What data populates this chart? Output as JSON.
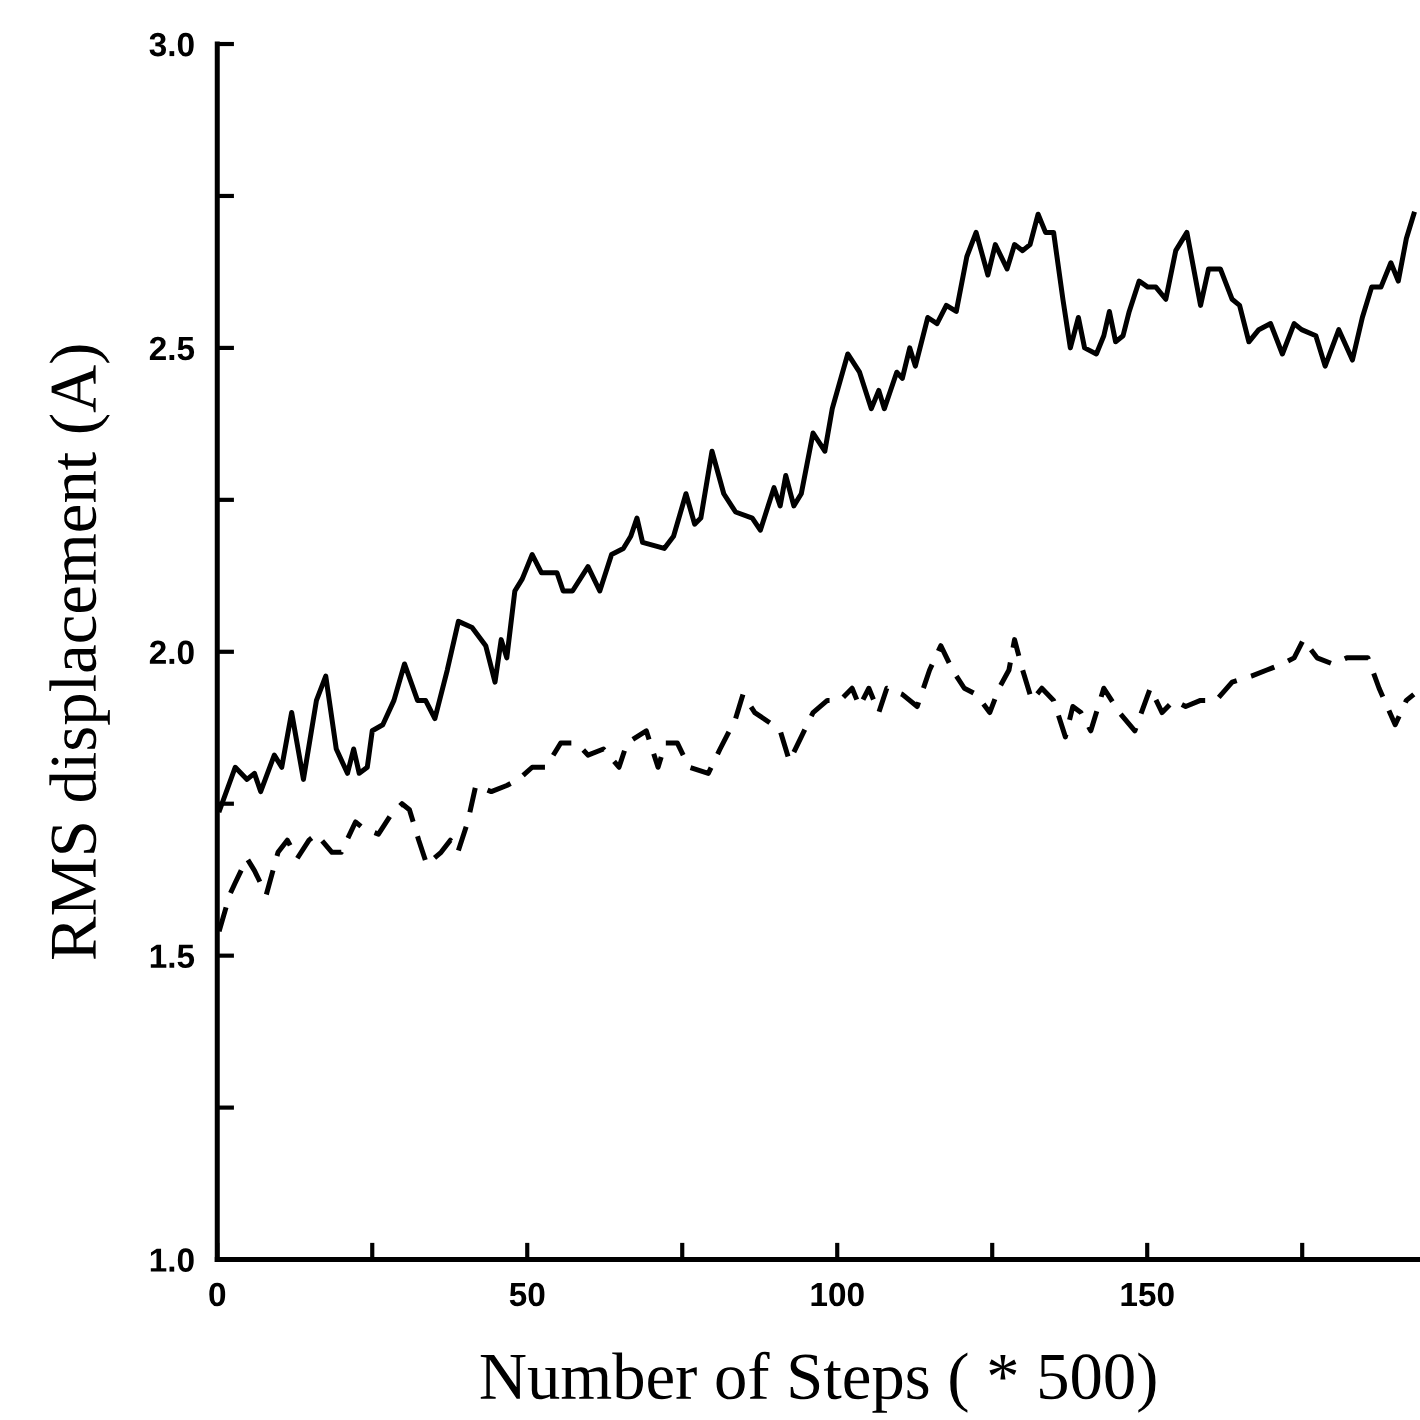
{
  "chart_data": {
    "type": "line",
    "xlabel": "Number of Steps ( * 500)",
    "ylabel": "RMS displacement (A)",
    "xlim": [
      0,
      194
    ],
    "ylim": [
      1.0,
      3.0
    ],
    "xticks": [
      0,
      {
        "value": 25,
        "label": null
      },
      50,
      {
        "value": 75,
        "label": null
      },
      100,
      {
        "value": 125,
        "label": null
      },
      150,
      {
        "value": 175,
        "label": null
      }
    ],
    "yticks": [
      {
        "value": 1.0,
        "label": "1.0"
      },
      {
        "value": 1.25,
        "label": null
      },
      {
        "value": 1.5,
        "label": "1.5"
      },
      {
        "value": 1.75,
        "label": null
      },
      {
        "value": 2.0,
        "label": "2.0"
      },
      {
        "value": 2.25,
        "label": null
      },
      {
        "value": 2.5,
        "label": "2.5"
      },
      {
        "value": 2.75,
        "label": null
      },
      {
        "value": 3.0,
        "label": "3.0"
      }
    ],
    "grid": false,
    "marker": "none",
    "series": [
      {
        "color": "#000000",
        "line_style": "solid",
        "x": [
          0.4,
          2.9,
          4.8,
          6.0,
          7.0,
          9.2,
          10.4,
          12.0,
          13.9,
          16.0,
          17.5,
          19.2,
          21.0,
          22.0,
          22.9,
          24.2,
          25.0,
          26.7,
          28.5,
          30.2,
          32.3,
          33.6,
          35.1,
          37.1,
          38.9,
          41.1,
          43.3,
          44.8,
          45.8,
          46.7,
          48.0,
          49.2,
          50.8,
          52.3,
          53.6,
          54.8,
          55.8,
          57.3,
          59.8,
          61.7,
          63.6,
          65.5,
          66.7,
          67.7,
          68.6,
          72.1,
          73.6,
          75.6,
          77.0,
          78.0,
          79.8,
          81.7,
          83.6,
          86.3,
          87.6,
          89.8,
          90.8,
          91.7,
          93.0,
          94.2,
          96.1,
          98.0,
          99.2,
          101.7,
          103.6,
          105.5,
          106.7,
          107.6,
          109.6,
          110.5,
          111.7,
          112.6,
          114.6,
          116.1,
          117.6,
          119.2,
          120.9,
          122.4,
          124.3,
          125.5,
          127.4,
          128.6,
          129.9,
          131.1,
          132.4,
          133.6,
          134.9,
          136.4,
          137.6,
          138.9,
          139.9,
          141.8,
          143.0,
          143.9,
          144.9,
          146.1,
          147.1,
          148.7,
          150.1,
          151.4,
          153.0,
          154.6,
          156.4,
          158.6,
          159.9,
          161.8,
          163.7,
          164.9,
          166.4,
          168.0,
          169.9,
          171.8,
          173.7,
          174.9,
          177.2,
          178.7,
          180.9,
          183.1,
          184.7,
          186.2,
          187.7,
          189.3,
          190.5,
          191.8,
          193.0
        ],
        "values": [
          1.74,
          1.81,
          1.79,
          1.8,
          1.77,
          1.83,
          1.81,
          1.9,
          1.79,
          1.92,
          1.96,
          1.84,
          1.8,
          1.84,
          1.8,
          1.81,
          1.87,
          1.88,
          1.92,
          1.98,
          1.92,
          1.92,
          1.89,
          1.97,
          2.05,
          2.04,
          2.01,
          1.95,
          2.02,
          1.99,
          2.1,
          2.12,
          2.16,
          2.13,
          2.13,
          2.13,
          2.1,
          2.1,
          2.14,
          2.1,
          2.16,
          2.17,
          2.19,
          2.22,
          2.18,
          2.17,
          2.19,
          2.26,
          2.21,
          2.22,
          2.33,
          2.26,
          2.23,
          2.22,
          2.2,
          2.27,
          2.24,
          2.29,
          2.24,
          2.26,
          2.36,
          2.33,
          2.4,
          2.49,
          2.46,
          2.4,
          2.43,
          2.4,
          2.46,
          2.45,
          2.5,
          2.47,
          2.55,
          2.54,
          2.57,
          2.56,
          2.65,
          2.69,
          2.62,
          2.67,
          2.63,
          2.67,
          2.66,
          2.67,
          2.72,
          2.69,
          2.69,
          2.58,
          2.5,
          2.55,
          2.5,
          2.49,
          2.52,
          2.56,
          2.51,
          2.52,
          2.56,
          2.61,
          2.6,
          2.6,
          2.58,
          2.66,
          2.69,
          2.57,
          2.63,
          2.63,
          2.58,
          2.57,
          2.51,
          2.53,
          2.54,
          2.49,
          2.54,
          2.53,
          2.52,
          2.47,
          2.53,
          2.48,
          2.55,
          2.6,
          2.6,
          2.64,
          2.61,
          2.68,
          2.72
        ]
      },
      {
        "color": "#000000",
        "line_style": "dashed",
        "x": [
          0.3,
          2.0,
          2.9,
          4.8,
          6.0,
          7.9,
          9.8,
          11.3,
          12.9,
          14.8,
          16.0,
          18.5,
          20.0,
          22.3,
          23.5,
          26.0,
          27.9,
          29.8,
          31.0,
          32.5,
          33.8,
          36.1,
          37.6,
          38.8,
          40.4,
          41.7,
          44.2,
          46.7,
          48.6,
          50.8,
          53.0,
          55.4,
          58.0,
          59.8,
          62.3,
          64.8,
          66.1,
          69.2,
          71.1,
          72.3,
          74.2,
          76.1,
          79.2,
          81.1,
          83.6,
          84.8,
          86.7,
          89.6,
          90.8,
          92.3,
          94.2,
          96.1,
          98.4,
          100.5,
          102.4,
          103.6,
          105.1,
          106.7,
          108.0,
          110.5,
          112.9,
          114.9,
          116.7,
          118.6,
          120.5,
          122.4,
          124.6,
          126.1,
          127.7,
          128.6,
          129.9,
          131.4,
          133.0,
          134.9,
          136.8,
          138.0,
          139.3,
          140.9,
          143.0,
          145.5,
          148.0,
          150.5,
          152.4,
          154.3,
          156.2,
          158.6,
          161.1,
          163.7,
          166.8,
          169.3,
          171.8,
          173.7,
          175.2,
          177.4,
          179.9,
          182.2,
          183.7,
          185.6,
          187.4,
          190.0,
          191.8,
          193.0
        ],
        "values": [
          1.54,
          1.6,
          1.62,
          1.66,
          1.64,
          1.6,
          1.67,
          1.69,
          1.66,
          1.69,
          1.7,
          1.67,
          1.67,
          1.72,
          1.71,
          1.7,
          1.73,
          1.75,
          1.74,
          1.69,
          1.65,
          1.67,
          1.69,
          1.67,
          1.72,
          1.78,
          1.77,
          1.78,
          1.79,
          1.81,
          1.81,
          1.85,
          1.85,
          1.83,
          1.84,
          1.81,
          1.85,
          1.87,
          1.81,
          1.85,
          1.85,
          1.81,
          1.8,
          1.84,
          1.89,
          1.93,
          1.9,
          1.88,
          1.87,
          1.82,
          1.86,
          1.9,
          1.92,
          1.92,
          1.94,
          1.91,
          1.94,
          1.9,
          1.94,
          1.93,
          1.91,
          1.97,
          2.01,
          1.97,
          1.94,
          1.93,
          1.9,
          1.94,
          1.97,
          2.02,
          1.97,
          1.92,
          1.94,
          1.92,
          1.86,
          1.91,
          1.9,
          1.87,
          1.94,
          1.9,
          1.87,
          1.94,
          1.9,
          1.92,
          1.91,
          1.92,
          1.92,
          1.95,
          1.96,
          1.97,
          1.98,
          1.99,
          2.02,
          1.99,
          1.98,
          1.99,
          1.99,
          1.99,
          1.94,
          1.88,
          1.92,
          1.93
        ]
      }
    ]
  }
}
